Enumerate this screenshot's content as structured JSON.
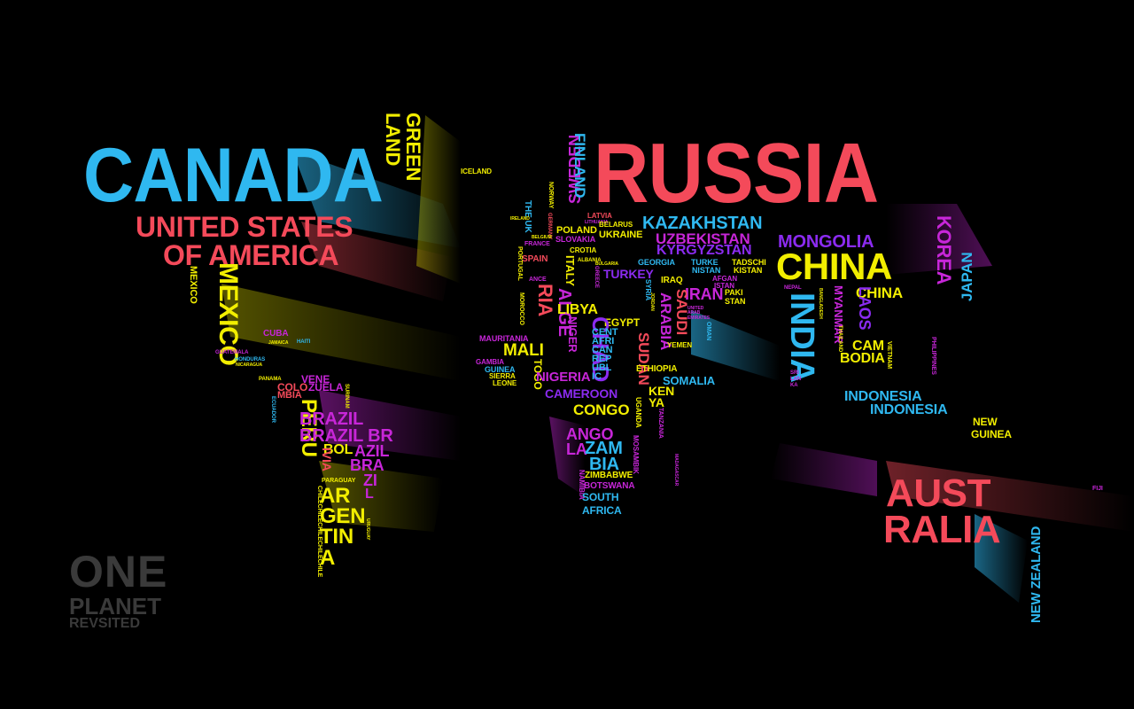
{
  "colors": {
    "background": "#000000",
    "cyan": "#2fb8f0",
    "red": "#f44a5a",
    "yellow": "#f2ee00",
    "magenta": "#c726d8",
    "purple": "#8b2bf0",
    "pink": "#ff3aa0",
    "orange": "#ff8a1e",
    "brand": "#3a3a3a"
  },
  "brand": {
    "line1": "ONE",
    "line2": "PLANET",
    "line3": "REVSITED"
  },
  "north_america": {
    "canada": "CANADA",
    "usa_line1": "UNITED STATES",
    "usa_line2": "OF AMERICA",
    "greenland_line1": "GREEN",
    "greenland_line2": "LAND",
    "iceland": "ICELAND",
    "mexico_big": "MEXICO",
    "mexico_small": "MEXICO",
    "cuba": "CUBA",
    "jamaica": "JAMAICA",
    "haiti": "HAITI",
    "guatemala": "GUATEMALA",
    "honduras": "HONDURAS",
    "nicaragua": "NICARAGUA",
    "panama": "PANAMA"
  },
  "south_america": {
    "vene": "VENE",
    "colo": "COLO",
    "zuela": "ZUELA",
    "mbia": "MBIA",
    "ecuador": "ECUADOR",
    "suriname": "SURINAM",
    "peru": "PERU",
    "brazil1": "BRAZIL",
    "brazil2": "BRAZIL BR",
    "bol": "BOL",
    "azil": "AZIL",
    "ivia": "IVIA",
    "bra": "BRA",
    "zi": "ZI",
    "paraguay": "PARAGUAY",
    "l": "L",
    "ar": "AR",
    "gen": "GEN",
    "tin": "TIN",
    "a": "A",
    "chile": "CHILECHILECHILECHILECHILE",
    "uruguay": "URUGUAY"
  },
  "europe": {
    "sweden": "SWEDEN",
    "finland": "FINLAND",
    "norway": "NORWAY",
    "germany": "GERMANY",
    "the_uk": "THE UK",
    "ireland": "IRELAND",
    "belgium": "BELGIUM",
    "france": "FRANCE",
    "ance": "ANCE",
    "latvia": "LATVIA",
    "lithuania": "LITHUANIA",
    "poland": "POLAND",
    "slovakia": "SLOVAKIA",
    "belarus": "BELARUS",
    "ukraine": "UKRAINE",
    "croatia": "CROTIA",
    "albania": "ALBANIA",
    "bulgaria": "BULGARIA",
    "greece": "GREECE",
    "italy": "ITALY",
    "spain": "SPAIN",
    "portugal": "PORTUGAL"
  },
  "africa": {
    "alge": "ALGE",
    "ria": "RIA",
    "morocco": "MOROCCO",
    "libya": "LIBYA",
    "egypt": "EGYPT",
    "chad": "CHAD",
    "niger": "NIGER",
    "cent": "CENT",
    "afri": "AFRI",
    "can": "CAN",
    "rep": "REP",
    "ubl": "UBL",
    "ic": "IC",
    "sudan": "SUDAN",
    "mauritania": "MAURITANIA",
    "mali": "MALI",
    "gambia": "GAMBIA",
    "guinea": "GUINEA",
    "sierra": "SIERRA",
    "leone": "LEONE",
    "togo": "TOGO",
    "nigeria": "NIGERIA",
    "cameroon": "CAMEROON",
    "ethiopia": "ETHIOPIA",
    "somalia": "SOMALIA",
    "ken": "KEN",
    "ya": "YA",
    "uganda": "UGANDA",
    "congo": "CONGO",
    "tanzania": "TANZANIA",
    "ango": "ANGO",
    "la": "LA",
    "zam": "ZAM",
    "bia": "BIA",
    "mosambik": "MOSAMBIK",
    "namibia": "NAMIBIA",
    "zimbabwe": "ZIMBABWE",
    "botswana": "BOTSWANA",
    "south": "SOUTH",
    "africa": "AFRICA",
    "madagascar": "MADAGASCAR"
  },
  "asia": {
    "russia": "RUSSIA",
    "kazakhstan": "KAZAKHSTAN",
    "uzbekistan": "UZBEKISTAN",
    "kyrgyzstan": "KYRGYZSTAN",
    "mongolia": "MONGOLIA",
    "korea": "KOREA",
    "japan": "JAPAN",
    "china_big": "CHINA",
    "china_small": "CHINA",
    "georgia": "GEORGIA",
    "turke": "TURKE",
    "tadschi": "TADSCHI",
    "nistan": "NISTAN",
    "kistan": "KISTAN",
    "afgan": "AFGAN",
    "istan": "ISTAN",
    "turkey": "TURKEY",
    "syria": "SYRIA",
    "iraq": "IRAQ",
    "iran": "IRAN",
    "paki": "PAKI",
    "stan": "STAN",
    "jordan": "JORDAN",
    "saudi": "SAUDI",
    "arabia": "ARABIA",
    "uae": "UNITED ARAB EMIRATES",
    "oman": "OMAN",
    "yemen": "YEMEN",
    "india": "INDIA",
    "nepal": "NEPAL",
    "bangladesh": "BANGLADESH",
    "myanmar": "MYANMAR",
    "thailand": "THAILAND",
    "laos": "LAOS",
    "cam": "CAM",
    "bodia": "BODIA",
    "vietnam": "VIETNAM",
    "philippines": "PHILIPPINES",
    "sri": "SRI",
    "lan": "LAN",
    "ka": "KA",
    "indonesia1": "INDONESIA",
    "indonesia2": "INDONESIA"
  },
  "oceania": {
    "new": "NEW",
    "guinea": "GUINEA",
    "aust": "AUST",
    "ralia": "RALIA",
    "new_zealand": "NEW ZEALAND",
    "fiji": "FIJI"
  }
}
